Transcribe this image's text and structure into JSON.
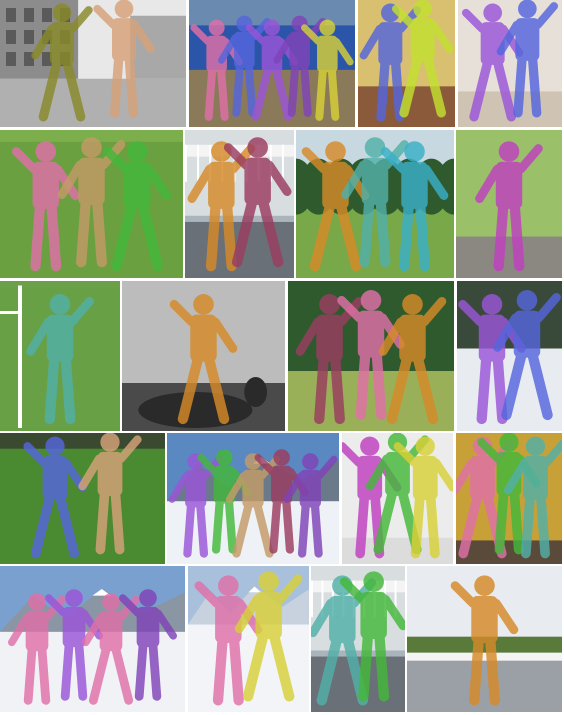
{
  "rows": [
    {
      "name": "row-1",
      "tiles": [
        {
          "name": "street-soccer-bw",
          "scene": "street",
          "figures": [
            "olive",
            "peach"
          ]
        },
        {
          "name": "baseball-practice",
          "scene": "field-wall",
          "figures": [
            "pink",
            "blue",
            "violet",
            "purple",
            "yellow"
          ]
        },
        {
          "name": "living-room-dance",
          "scene": "room",
          "figures": [
            "blue",
            "lime"
          ]
        },
        {
          "name": "kitchen-pair",
          "scene": "room-light",
          "figures": [
            "violet",
            "blue"
          ]
        }
      ]
    },
    {
      "name": "row-2",
      "tiles": [
        {
          "name": "grass-soccer",
          "scene": "grass",
          "figures": [
            "pink",
            "tan",
            "green"
          ]
        },
        {
          "name": "skate-jump-wall",
          "scene": "skatepark",
          "figures": [
            "orange",
            "maroon"
          ]
        },
        {
          "name": "park-walk",
          "scene": "park",
          "figures": [
            "orange",
            "teal",
            "cyan"
          ]
        },
        {
          "name": "skate-trick",
          "scene": "skatepark-trees",
          "figures": [
            "magenta"
          ]
        }
      ]
    },
    {
      "name": "row-3",
      "tiles": [
        {
          "name": "goalkeeper",
          "scene": "grass-net",
          "figures": [
            "teal"
          ]
        },
        {
          "name": "horse-rider-bw",
          "scene": "bw-horse",
          "figures": [
            "orange"
          ]
        },
        {
          "name": "meadow-play",
          "scene": "meadow",
          "figures": [
            "maroon",
            "pink",
            "orange"
          ]
        },
        {
          "name": "ski-slope-forest",
          "scene": "snow-forest",
          "figures": [
            "violet",
            "blue"
          ]
        }
      ]
    },
    {
      "name": "row-4",
      "tiles": [
        {
          "name": "tennis-pair",
          "scene": "grass-dark",
          "figures": [
            "blue",
            "peach"
          ]
        },
        {
          "name": "mountain-group",
          "scene": "mountains",
          "figures": [
            "violet",
            "green",
            "tan",
            "maroon",
            "purple"
          ]
        },
        {
          "name": "studio-trio",
          "scene": "studio",
          "figures": [
            "magenta",
            "green",
            "yellow"
          ]
        },
        {
          "name": "indoor-group",
          "scene": "indoor-yellow",
          "figures": [
            "pink",
            "green",
            "teal"
          ]
        }
      ]
    },
    {
      "name": "row-5",
      "tiles": [
        {
          "name": "ski-group",
          "scene": "snow-mountain",
          "figures": [
            "pink",
            "violet",
            "pink",
            "purple"
          ]
        },
        {
          "name": "ski-pair",
          "scene": "snow-peak",
          "figures": [
            "pink",
            "yellow"
          ]
        },
        {
          "name": "skate-jump-night",
          "scene": "skatepark",
          "figures": [
            "teal",
            "green"
          ]
        },
        {
          "name": "rail-jump",
          "scene": "trees-winter",
          "figures": [
            "orange"
          ]
        }
      ]
    }
  ],
  "palette": {
    "olive": "#8a8a2a",
    "peach": "#d7a27a",
    "pink": "#e070a8",
    "blue": "#5566dd",
    "violet": "#9a55d8",
    "purple": "#8044b8",
    "yellow": "#d8d038",
    "lime": "#c4e030",
    "tan": "#c49b68",
    "green": "#44b83a",
    "orange": "#d68a28",
    "maroon": "#9a3d60",
    "teal": "#52b0a8",
    "cyan": "#3ab0c8",
    "magenta": "#c040c0"
  }
}
